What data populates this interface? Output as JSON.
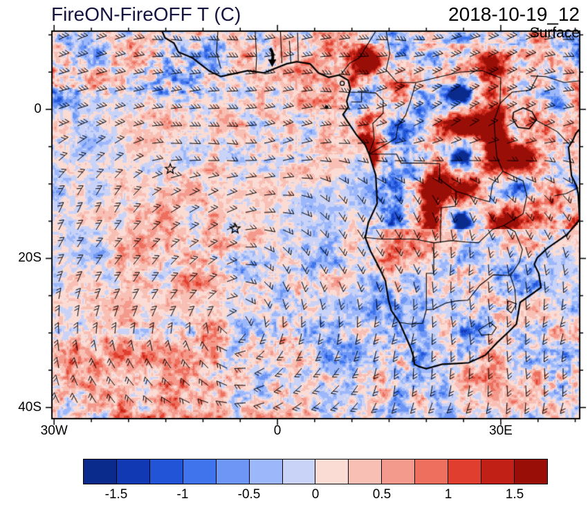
{
  "header": {
    "title": "FireON-FireOFF T (C)",
    "date": "2018-10-19_12",
    "level": "Surface",
    "title_color": "#14143f"
  },
  "axes": {
    "y_ticks": [
      {
        "label": "0",
        "lat": 0
      },
      {
        "label": "20S",
        "lat": -20
      },
      {
        "label": "40S",
        "lat": -40
      }
    ],
    "x_ticks": [
      {
        "label": "30W",
        "lon": -30
      },
      {
        "label": "0",
        "lon": 0
      },
      {
        "label": "30E",
        "lon": 30
      }
    ],
    "lon_range": [
      -30.3,
      40.6
    ],
    "lat_range": [
      -41.5,
      10.5
    ]
  },
  "colorbar": {
    "colors": [
      "#0a2a8c",
      "#1239b4",
      "#2254d8",
      "#3f74ec",
      "#6e97f5",
      "#9db8fa",
      "#c9d3f8",
      "#fbdcd5",
      "#f8bfb4",
      "#f49a8c",
      "#ee6f5e",
      "#e03f2f",
      "#c02015",
      "#9a0e08"
    ],
    "labels": [
      "-1.5",
      "-1",
      "-0.5",
      "0",
      "0.5",
      "1",
      "1.5"
    ],
    "min": -1.75,
    "max": 1.75,
    "step": 0.25
  },
  "markers": {
    "stars": [
      {
        "name": "ascension-island-star",
        "lon": -14.4,
        "lat": -8.0
      },
      {
        "name": "st-helena-star",
        "lon": -5.7,
        "lat": -16.0
      }
    ],
    "island_dot": {
      "name": "sao-tome-dot",
      "lon": 6.6,
      "lat": 0.3
    },
    "arrow": {
      "name": "strong-wind-arrow",
      "lon": -0.8,
      "lat": 8.2
    }
  },
  "chart_data": {
    "type": "heatmap",
    "title": "FireON-FireOFF T (C)",
    "timestamp": "2018-10-19_12",
    "level": "Surface",
    "variable": "FireON minus FireOFF surface temperature difference",
    "units": "C",
    "lon_range": [
      -30.3,
      40.6
    ],
    "lat_range": [
      -41.5,
      10.5
    ],
    "contour_levels": [
      -1.75,
      -1.5,
      -1.25,
      -1,
      -0.75,
      -0.5,
      -0.25,
      0,
      0.25,
      0.5,
      0.75,
      1,
      1.25,
      1.5,
      1.75
    ],
    "palette": [
      "#0a2a8c",
      "#1239b4",
      "#2254d8",
      "#3f74ec",
      "#6e97f5",
      "#9db8fa",
      "#c9d3f8",
      "#fbdcd5",
      "#f8bfb4",
      "#f49a8c",
      "#ee6f5e",
      "#e03f2f",
      "#c02015",
      "#9a0e08"
    ],
    "legend_position": "bottom",
    "overlays": [
      "surface-wind-barbs",
      "coastlines",
      "country-borders",
      "station-star-markers"
    ],
    "pattern_notes": [
      "South Atlantic mostly weak positive anomaly (0 to 0.25 C) with pale negative bands near the equator and along the southwest African coast",
      "Strong alternating positive/negative anomalies up to +/-1.75 C over central Africa and the northeast of the domain",
      "Negative (blue) patches over southeastern Africa; mixed fine-scale speckle south of 28S and in the northwest corner"
    ]
  }
}
